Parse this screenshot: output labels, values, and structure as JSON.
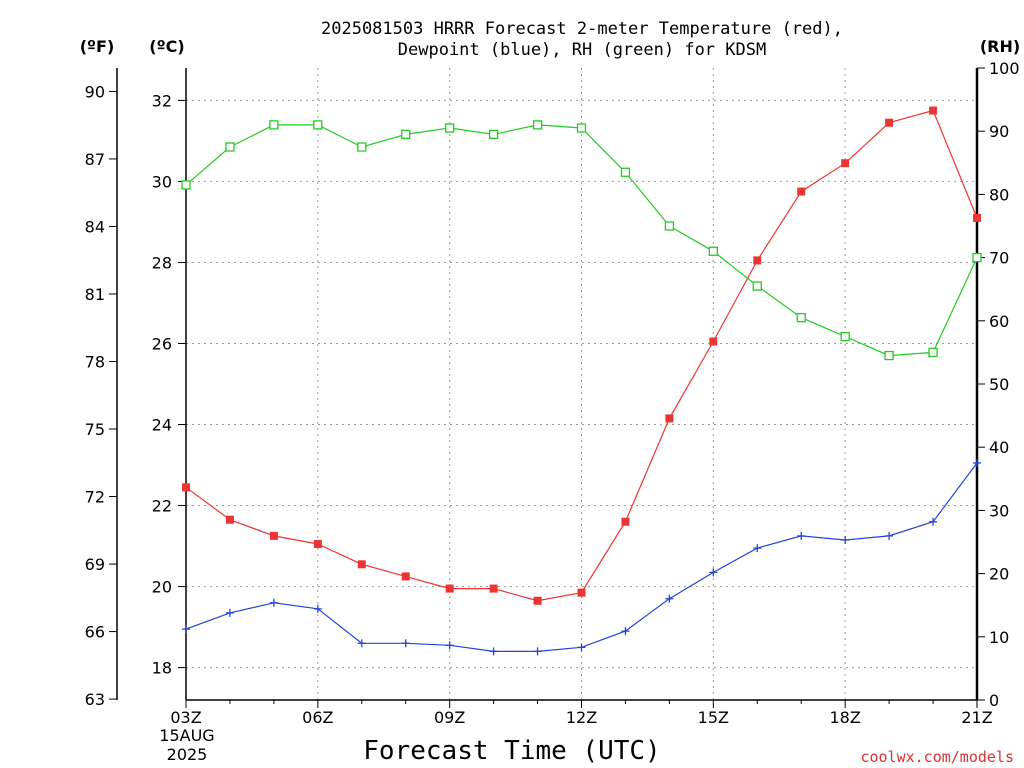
{
  "chart_data": {
    "type": "line",
    "title_line1": "2025081503 HRRR Forecast 2-meter Temperature (red),",
    "title_line2": "Dewpoint (blue), RH (green) for KDSM",
    "xlabel": "Forecast Time (UTC)",
    "credit": "coolwx.com/models",
    "date_line1": "15AUG",
    "date_line2": "2025",
    "units": {
      "fahrenheit": "(ºF)",
      "celsius": "(ºC)",
      "rh": "(RH)"
    },
    "x": [
      "03Z",
      "04Z",
      "05Z",
      "06Z",
      "07Z",
      "08Z",
      "09Z",
      "10Z",
      "11Z",
      "12Z",
      "13Z",
      "14Z",
      "15Z",
      "16Z",
      "17Z",
      "18Z",
      "19Z",
      "20Z",
      "21Z"
    ],
    "x_ticks": [
      "03Z",
      "06Z",
      "09Z",
      "12Z",
      "15Z",
      "18Z",
      "21Z"
    ],
    "y_left_c": {
      "min": 17.2,
      "max": 32.8,
      "ticks": [
        18,
        20,
        22,
        24,
        26,
        28,
        30,
        32
      ]
    },
    "y_left_f": {
      "ticks": [
        63,
        66,
        69,
        72,
        75,
        78,
        81,
        84,
        87,
        90
      ]
    },
    "y_right_rh": {
      "min": 0,
      "max": 100,
      "ticks": [
        0,
        10,
        20,
        30,
        40,
        50,
        60,
        70,
        80,
        90,
        100
      ]
    },
    "grid": true,
    "series": [
      {
        "name": "Temperature",
        "axis": "celsius",
        "color": "#ee3333",
        "marker": "filled-square",
        "values": [
          22.45,
          21.65,
          21.25,
          21.05,
          20.55,
          20.25,
          19.95,
          19.95,
          19.65,
          19.85,
          21.6,
          24.15,
          26.05,
          28.05,
          29.75,
          30.45,
          31.45,
          31.75,
          29.1
        ]
      },
      {
        "name": "Dewpoint",
        "axis": "celsius",
        "color": "#2244dd",
        "marker": "plus",
        "values": [
          18.95,
          19.35,
          19.6,
          19.45,
          18.6,
          18.6,
          18.55,
          18.4,
          18.4,
          18.5,
          18.9,
          19.7,
          20.35,
          20.95,
          21.25,
          21.15,
          21.25,
          21.6,
          23.05
        ]
      },
      {
        "name": "RH",
        "axis": "rh",
        "color": "#22cc22",
        "marker": "open-square",
        "values": [
          81.5,
          87.5,
          91,
          91,
          87.5,
          89.5,
          90.5,
          89.5,
          91,
          90.5,
          83.5,
          75,
          71,
          65.5,
          60.5,
          57.5,
          54.5,
          55,
          70
        ]
      }
    ]
  }
}
